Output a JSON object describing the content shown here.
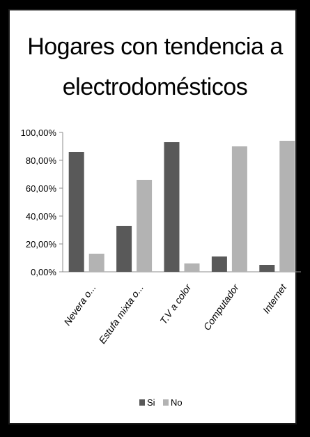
{
  "chart_data": {
    "type": "bar",
    "title_lines": [
      "Hogares con tendencia a",
      "electrodomésticos"
    ],
    "categories": [
      "Nevera o...",
      "Estufa mixta o...",
      "T.V a color",
      "Computador",
      "Internet"
    ],
    "series": [
      {
        "name": "Si",
        "color": "#595959",
        "values": [
          86,
          33,
          93,
          11,
          5
        ]
      },
      {
        "name": "No",
        "color": "#b3b3b3",
        "values": [
          13,
          66,
          6,
          90,
          94
        ]
      }
    ],
    "y_ticks": [
      "0,00%",
      "20,00%",
      "40,00%",
      "60,00%",
      "80,00%",
      "100,00%"
    ],
    "ylim": [
      0,
      100
    ],
    "grid": false,
    "legend_position": "bottom"
  }
}
